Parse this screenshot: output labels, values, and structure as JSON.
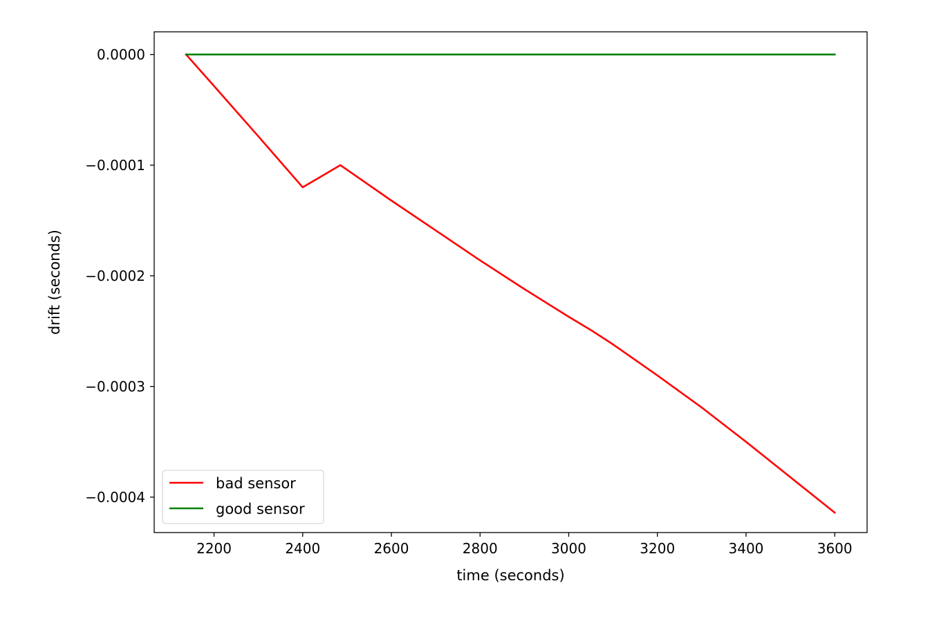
{
  "chart_data": {
    "type": "line",
    "xlabel": "time (seconds)",
    "ylabel": "drift (seconds)",
    "xlim": [
      2065,
      3673
    ],
    "ylim": [
      -0.000432,
      2.05e-05
    ],
    "xticks": [
      2200,
      2400,
      2600,
      2800,
      3000,
      3200,
      3400,
      3600
    ],
    "xtick_labels": [
      "2200",
      "2400",
      "2600",
      "2800",
      "3000",
      "3200",
      "3400",
      "3600"
    ],
    "yticks": [
      0,
      -0.0001,
      -0.0002,
      -0.0003,
      -0.0004
    ],
    "ytick_labels": [
      "0.0000",
      "−0.0001",
      "−0.0002",
      "−0.0003",
      "−0.0004"
    ],
    "grid": false,
    "legend": {
      "position": "lower-left",
      "entries": [
        "bad sensor",
        "good sensor"
      ]
    },
    "series": [
      {
        "name": "bad sensor",
        "color": "#ff0000",
        "x": [
          2137,
          2200,
          2300,
          2400,
          2485,
          2600,
          2700,
          2800,
          2900,
          3000,
          3050,
          3100,
          3200,
          3300,
          3400,
          3500,
          3600
        ],
        "y": [
          0,
          -2.85e-05,
          -7.4e-05,
          -0.00012,
          -0.0001,
          -0.000132,
          -0.000159,
          -0.000186,
          -0.000212,
          -0.000237,
          -0.000249,
          -0.000262,
          -0.00029,
          -0.000319,
          -0.00035,
          -0.000382,
          -0.000414
        ]
      },
      {
        "name": "good sensor",
        "color": "#008000",
        "x": [
          2137,
          3600
        ],
        "y": [
          0,
          0
        ]
      }
    ]
  }
}
